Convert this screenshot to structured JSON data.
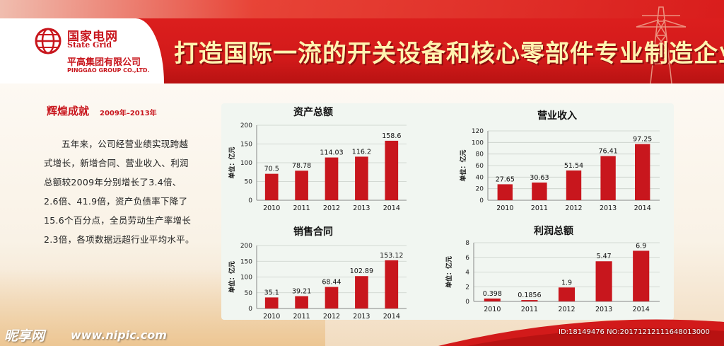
{
  "brand": {
    "state_grid_cn": "国家电网",
    "state_grid_en": "State Grid",
    "company_cn": "平高集团有限公司",
    "company_en": "PINGGAO GROUP CO.,LTD."
  },
  "slogan": "打造国际一流的开关设备和核心零部件专业制造企业",
  "section": {
    "title": "辉煌成就",
    "range": "2009年–2013年",
    "paragraph": "五年来，公司经营业绩实现跨越式增长，新增合同、营业收入、利润总额较2009年分别增长了3.4倍、2.6倍、41.9倍，资产负债率下降了15.6个百分点，全员劳动生产率增长2.3倍，各项数据远超行业平均水平。"
  },
  "colors": {
    "bar": "#c8161d",
    "header_red": "#d21a1a",
    "slogan_text": "#fff3b0"
  },
  "watermark": {
    "brand": "昵享网",
    "url": "www.nipic.com",
    "id": "ID:18149476 NO:20171212111648013000"
  },
  "chart_data": [
    {
      "type": "bar",
      "title": "资产总额",
      "ylabel": "单位：亿元",
      "categories": [
        "2010",
        "2011",
        "2012",
        "2013",
        "2014"
      ],
      "values": [
        70.5,
        78.78,
        114.03,
        116.2,
        158.6
      ],
      "value_labels": [
        "70.5",
        "78.78",
        "114.03",
        "116.2",
        "158.6"
      ],
      "ylim": [
        0,
        200
      ],
      "yticks": [
        "0",
        "50",
        "100",
        "150",
        "200"
      ],
      "grid": true
    },
    {
      "type": "bar",
      "title": "营业收入",
      "ylabel": "单位：亿元",
      "categories": [
        "2010",
        "2011",
        "2012",
        "2013",
        "2014"
      ],
      "values": [
        27.65,
        30.63,
        51.54,
        76.41,
        97.25
      ],
      "value_labels": [
        "27.65",
        "30.63",
        "51.54",
        "76.41",
        "97.25"
      ],
      "ylim": [
        0,
        120
      ],
      "yticks": [
        "0",
        "20",
        "40",
        "60",
        "80",
        "100",
        "120"
      ],
      "grid": true
    },
    {
      "type": "bar",
      "title": "销售合同",
      "ylabel": "单位：亿元",
      "categories": [
        "2010",
        "2011",
        "2012",
        "2013",
        "2014"
      ],
      "values": [
        35.1,
        39.21,
        68.44,
        102.89,
        153.12
      ],
      "value_labels": [
        "35.1",
        "39.21",
        "68.44",
        "102.89",
        "153.12"
      ],
      "ylim": [
        0,
        200
      ],
      "yticks": [
        "0",
        "50",
        "100",
        "150",
        "200"
      ],
      "grid": true
    },
    {
      "type": "bar",
      "title": "利润总额",
      "ylabel": "单位：亿元",
      "categories": [
        "2010",
        "2011",
        "2012",
        "2013",
        "2014"
      ],
      "values": [
        0.398,
        0.1856,
        1.9,
        5.47,
        6.9
      ],
      "value_labels": [
        "0.398",
        "0.1856",
        "1.9",
        "5.47",
        "6.9"
      ],
      "ylim": [
        0,
        8
      ],
      "yticks": [
        "0",
        "2",
        "4",
        "6",
        "8"
      ],
      "grid": true
    }
  ]
}
